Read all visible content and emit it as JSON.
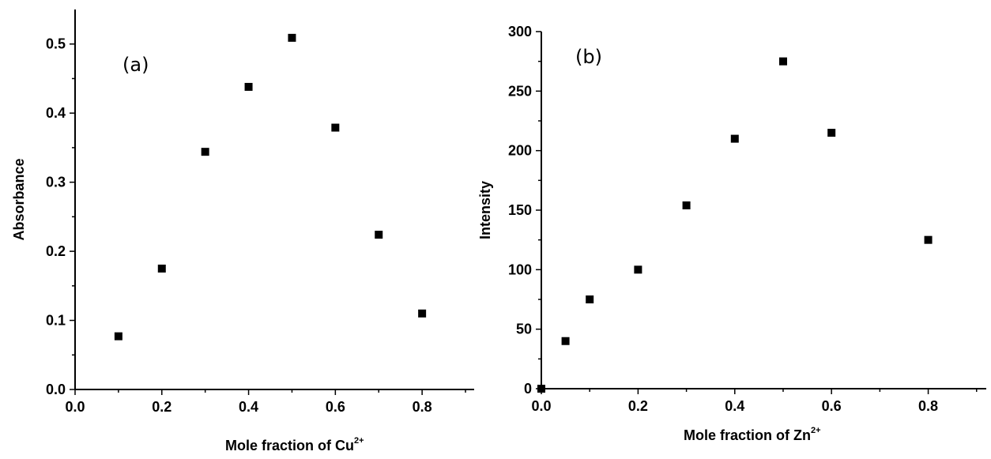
{
  "chart_data": [
    {
      "type": "scatter",
      "panel_label": "(a)",
      "xlabel": "Mole fraction of Cu",
      "xlabel_superscript": "2+",
      "ylabel": "Absorbance",
      "xlim": [
        0.0,
        0.92
      ],
      "ylim": [
        0.0,
        0.55
      ],
      "x_ticks": [
        "0.0",
        "0.2",
        "0.4",
        "0.6",
        "0.8"
      ],
      "y_ticks": [
        "0.0",
        "0.1",
        "0.2",
        "0.3",
        "0.4",
        "0.5"
      ],
      "grid": false,
      "marker_color": "#000000",
      "points": [
        {
          "x": 0.1,
          "y": 0.077
        },
        {
          "x": 0.2,
          "y": 0.175
        },
        {
          "x": 0.3,
          "y": 0.344
        },
        {
          "x": 0.4,
          "y": 0.438
        },
        {
          "x": 0.5,
          "y": 0.509
        },
        {
          "x": 0.6,
          "y": 0.379
        },
        {
          "x": 0.7,
          "y": 0.224
        },
        {
          "x": 0.8,
          "y": 0.11
        }
      ]
    },
    {
      "type": "scatter",
      "panel_label": "(b)",
      "xlabel": "Mole fraction of Zn",
      "xlabel_superscript": "2+",
      "ylabel": "Intensity",
      "xlim": [
        0.0,
        0.92
      ],
      "ylim": [
        0,
        300
      ],
      "x_ticks": [
        "0.0",
        "0.2",
        "0.4",
        "0.6",
        "0.8"
      ],
      "y_ticks": [
        "0",
        "50",
        "100",
        "150",
        "200",
        "250",
        "300"
      ],
      "grid": false,
      "marker_color": "#000000",
      "points": [
        {
          "x": 0.0,
          "y": 0
        },
        {
          "x": 0.05,
          "y": 40
        },
        {
          "x": 0.1,
          "y": 75
        },
        {
          "x": 0.2,
          "y": 100
        },
        {
          "x": 0.3,
          "y": 154
        },
        {
          "x": 0.4,
          "y": 210
        },
        {
          "x": 0.5,
          "y": 275
        },
        {
          "x": 0.6,
          "y": 215
        },
        {
          "x": 0.8,
          "y": 125
        }
      ]
    }
  ]
}
